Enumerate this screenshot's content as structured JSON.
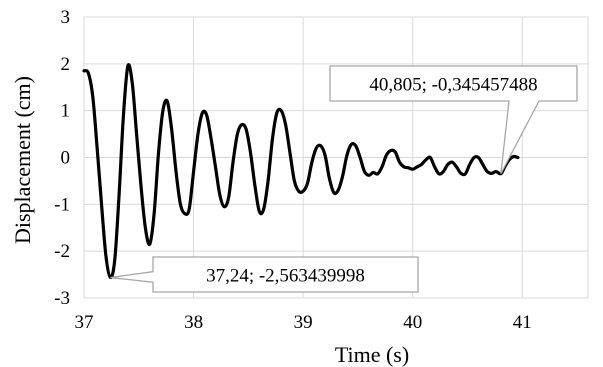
{
  "chart_data": {
    "type": "line",
    "title": "",
    "xlabel": "Time (s)",
    "ylabel": "Displacement (cm)",
    "xlim": [
      37,
      41.6
    ],
    "ylim": [
      -3,
      3
    ],
    "xticks": [
      37,
      38,
      39,
      40,
      41
    ],
    "xtick_labels": [
      "37",
      "38",
      "39",
      "40",
      "41"
    ],
    "yticks": [
      -3,
      -2,
      -1,
      0,
      1,
      2,
      3
    ],
    "ytick_labels": [
      "-3",
      "-2",
      "-1",
      "0",
      "1",
      "2",
      "3"
    ],
    "grid": true,
    "line_color": "#000000",
    "grid_color": "#d9d9d9",
    "series": [
      {
        "x": [
          37.0,
          37.04,
          37.08,
          37.12,
          37.16,
          37.2,
          37.24,
          37.28,
          37.32,
          37.36,
          37.4,
          37.44,
          37.48,
          37.52,
          37.56,
          37.6,
          37.64,
          37.68,
          37.72,
          37.76,
          37.8,
          37.84,
          37.88,
          37.92,
          37.96,
          38.0,
          38.04,
          38.08,
          38.12,
          38.16,
          38.2,
          38.24,
          38.28,
          38.32,
          38.36,
          38.4,
          38.44,
          38.48,
          38.52,
          38.56,
          38.6,
          38.64,
          38.68,
          38.72,
          38.76,
          38.8,
          38.84,
          38.88,
          38.92,
          38.96,
          39.0,
          39.04,
          39.08,
          39.12,
          39.16,
          39.2,
          39.24,
          39.28,
          39.32,
          39.36,
          39.4,
          39.44,
          39.48,
          39.52,
          39.56,
          39.6,
          39.64,
          39.68,
          39.72,
          39.76,
          39.8,
          39.84,
          39.88,
          39.92,
          39.96,
          40.0,
          40.04,
          40.08,
          40.12,
          40.16,
          40.2,
          40.24,
          40.28,
          40.32,
          40.36,
          40.4,
          40.44,
          40.48,
          40.52,
          40.56,
          40.6,
          40.64,
          40.68,
          40.72,
          40.76,
          40.805,
          40.84,
          40.88,
          40.92,
          40.96
        ],
        "y": [
          1.85,
          1.8,
          1.3,
          0.2,
          -1.0,
          -2.1,
          -2.56,
          -2.2,
          -0.8,
          0.9,
          1.95,
          1.6,
          0.5,
          -0.6,
          -1.5,
          -1.85,
          -1.2,
          0.1,
          1.0,
          1.2,
          0.6,
          -0.3,
          -1.0,
          -1.2,
          -1.1,
          -0.3,
          0.5,
          0.95,
          0.9,
          0.4,
          -0.2,
          -0.8,
          -1.05,
          -0.85,
          -0.1,
          0.5,
          0.7,
          0.6,
          0.1,
          -0.6,
          -1.15,
          -1.1,
          -0.5,
          0.4,
          0.95,
          1.0,
          0.7,
          0.1,
          -0.5,
          -0.72,
          -0.72,
          -0.55,
          -0.1,
          0.2,
          0.25,
          0.05,
          -0.45,
          -0.75,
          -0.7,
          -0.4,
          0.05,
          0.28,
          0.25,
          0.0,
          -0.3,
          -0.38,
          -0.32,
          -0.35,
          -0.2,
          0.05,
          0.15,
          0.12,
          -0.1,
          -0.2,
          -0.22,
          -0.25,
          -0.2,
          -0.15,
          -0.05,
          0.0,
          -0.2,
          -0.35,
          -0.3,
          -0.15,
          -0.1,
          -0.2,
          -0.34,
          -0.35,
          -0.15,
          0.0,
          0.0,
          -0.15,
          -0.3,
          -0.34,
          -0.3,
          -0.3455,
          -0.2,
          -0.05,
          0.02,
          0.0
        ]
      }
    ],
    "annotations": [
      {
        "x": 37.24,
        "y": -2.563439998,
        "text": "37,24; -2,563439998"
      },
      {
        "x": 40.805,
        "y": -0.345457488,
        "text": "40,805; -0,345457488"
      }
    ]
  }
}
